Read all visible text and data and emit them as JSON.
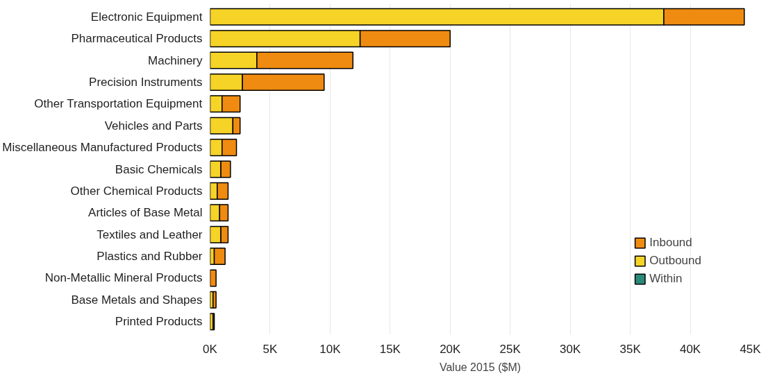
{
  "chart_data": {
    "type": "bar",
    "orientation": "horizontal",
    "stacked": true,
    "xlabel": "Value 2015 ($M)",
    "categories": [
      "Electronic Equipment",
      "Pharmaceutical Products",
      "Machinery",
      "Precision Instruments",
      "Other Transportation Equipment",
      "Vehicles and Parts",
      "Miscellaneous Manufactured Products",
      "Basic Chemicals",
      "Other Chemical Products",
      "Articles of Base Metal",
      "Textiles and Leather",
      "Plastics and Rubber",
      "Non-Metallic Mineral Products",
      "Base Metals and Shapes",
      "Printed Products"
    ],
    "series": [
      {
        "name": "Outbound",
        "color": "#f5d327",
        "values": [
          37800,
          12500,
          3900,
          2700,
          1000,
          1900,
          1000,
          900,
          600,
          800,
          900,
          350,
          null,
          250,
          250
        ]
      },
      {
        "name": "Inbound",
        "color": "#ef8b10",
        "values": [
          6700,
          7500,
          8000,
          6800,
          1500,
          600,
          1200,
          800,
          900,
          700,
          600,
          900,
          500,
          250,
          100
        ]
      },
      {
        "name": "Within",
        "color": "#2a8a7a",
        "values": [
          0,
          0,
          0,
          0,
          0,
          0,
          0,
          0,
          0,
          0,
          0,
          0,
          0,
          0,
          0
        ]
      }
    ],
    "xlim": [
      0,
      45000
    ],
    "xticks": [
      {
        "value": 0,
        "label": "0K"
      },
      {
        "value": 5000,
        "label": "5K"
      },
      {
        "value": 10000,
        "label": "10K"
      },
      {
        "value": 15000,
        "label": "15K"
      },
      {
        "value": 20000,
        "label": "20K"
      },
      {
        "value": 25000,
        "label": "25K"
      },
      {
        "value": 30000,
        "label": "30K"
      },
      {
        "value": 35000,
        "label": "35K"
      },
      {
        "value": 40000,
        "label": "40K"
      },
      {
        "value": 45000,
        "label": "45K"
      }
    ],
    "grid": "x",
    "legend": "bottom right"
  }
}
